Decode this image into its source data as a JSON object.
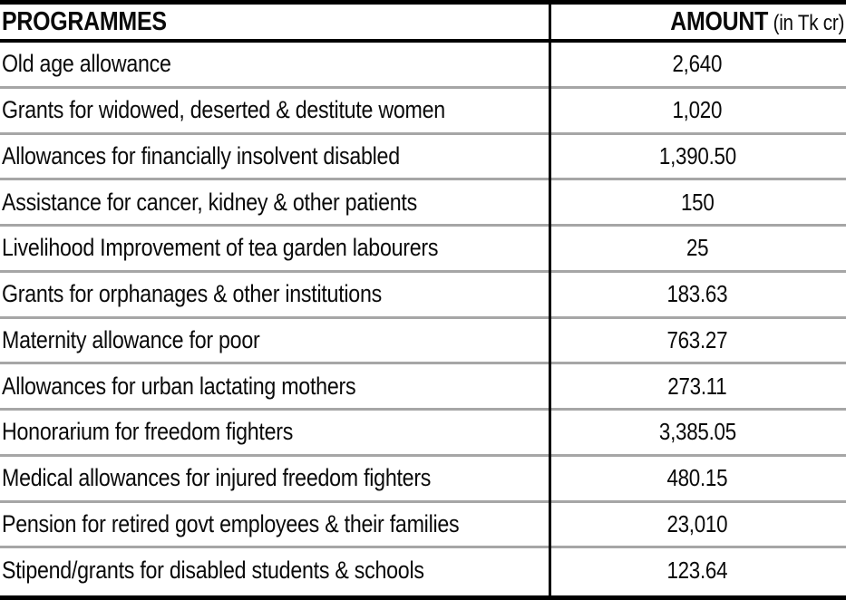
{
  "table": {
    "header": {
      "programmes": "PROGRAMMES",
      "amount": "AMOUNT",
      "amount_unit": " (in Tk cr)"
    },
    "rows": [
      {
        "programme": "Old age allowance",
        "amount": "2,640"
      },
      {
        "programme": "Grants for widowed, deserted & destitute women",
        "amount": "1,020"
      },
      {
        "programme": "Allowances for financially insolvent disabled",
        "amount": "1,390.50"
      },
      {
        "programme": "Assistance for cancer, kidney & other patients",
        "amount": "150"
      },
      {
        "programme": "Livelihood Improvement of tea garden labourers",
        "amount": "25"
      },
      {
        "programme": "Grants for orphanages & other institutions",
        "amount": "183.63"
      },
      {
        "programme": "Maternity allowance for poor",
        "amount": "763.27"
      },
      {
        "programme": "Allowances for urban lactating mothers",
        "amount": "273.11"
      },
      {
        "programme": "Honorarium for freedom fighters",
        "amount": "3,385.05"
      },
      {
        "programme": "Medical allowances for injured freedom fighters",
        "amount": "480.15"
      },
      {
        "programme": "Pension for retired govt employees & their families",
        "amount": "23,010"
      },
      {
        "programme": "Stipend/grants for disabled students & schools",
        "amount": "123.64"
      }
    ]
  },
  "colors": {
    "text": "#0a0a0a",
    "border_black": "#000000",
    "row_separator": "#a6a6a6",
    "background": "#ffffff"
  },
  "chart_data": {
    "type": "table",
    "title": "",
    "columns": [
      "PROGRAMMES",
      "AMOUNT (in Tk cr)"
    ],
    "categories": [
      "Old age allowance",
      "Grants for widowed, deserted & destitute women",
      "Allowances for financially insolvent disabled",
      "Assistance for cancer, kidney & other patients",
      "Livelihood Improvement of tea garden labourers",
      "Grants for orphanages & other institutions",
      "Maternity allowance for poor",
      "Allowances for urban lactating mothers",
      "Honorarium for freedom fighters",
      "Medical allowances for injured freedom fighters",
      "Pension for retired govt employees & their families",
      "Stipend/grants for disabled students & schools"
    ],
    "values": [
      2640,
      1020,
      1390.5,
      150,
      25,
      183.63,
      763.27,
      273.11,
      3385.05,
      480.15,
      23010,
      123.64
    ],
    "unit": "Tk cr"
  }
}
